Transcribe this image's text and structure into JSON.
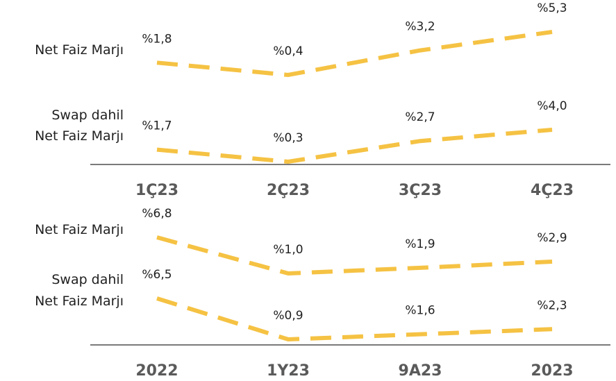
{
  "colors": {
    "line": "#F5C243",
    "axis": "#7a7a7a",
    "category_text": "#5a5a5a"
  },
  "chart_data": [
    {
      "type": "line",
      "categories": [
        "1Ç23",
        "2Ç23",
        "3Ç23",
        "4Ç23"
      ],
      "series": [
        {
          "name": "Net Faiz Marjı",
          "values": [
            1.8,
            0.4,
            3.2,
            5.3
          ],
          "labels": [
            "%1,8",
            "%0,4",
            "%3,2",
            "%5,3"
          ]
        },
        {
          "name": "Swap dahil Net Faiz Marjı",
          "values": [
            1.7,
            0.3,
            2.7,
            4.0
          ],
          "labels": [
            "%1,7",
            "%0,3",
            "%2,7",
            "%4,0"
          ]
        }
      ],
      "row_labels": [
        [
          "Net Faiz Marjı"
        ],
        [
          "Swap dahil",
          "Net Faiz Marjı"
        ]
      ]
    },
    {
      "type": "line",
      "categories": [
        "2022",
        "1Y23",
        "9A23",
        "2023"
      ],
      "series": [
        {
          "name": "Net Faiz Marjı",
          "values": [
            6.8,
            1.0,
            1.9,
            2.9
          ],
          "labels": [
            "%6,8",
            "%1,0",
            "%1,9",
            "%2,9"
          ]
        },
        {
          "name": "Swap dahil Net Faiz Marjı",
          "values": [
            6.5,
            0.9,
            1.6,
            2.3
          ],
          "labels": [
            "%6,5",
            "%0,9",
            "%1,6",
            "%2,3"
          ]
        }
      ],
      "row_labels": [
        [
          "Net Faiz Marjı"
        ],
        [
          "Swap dahil",
          "Net Faiz Marjı"
        ]
      ]
    }
  ]
}
